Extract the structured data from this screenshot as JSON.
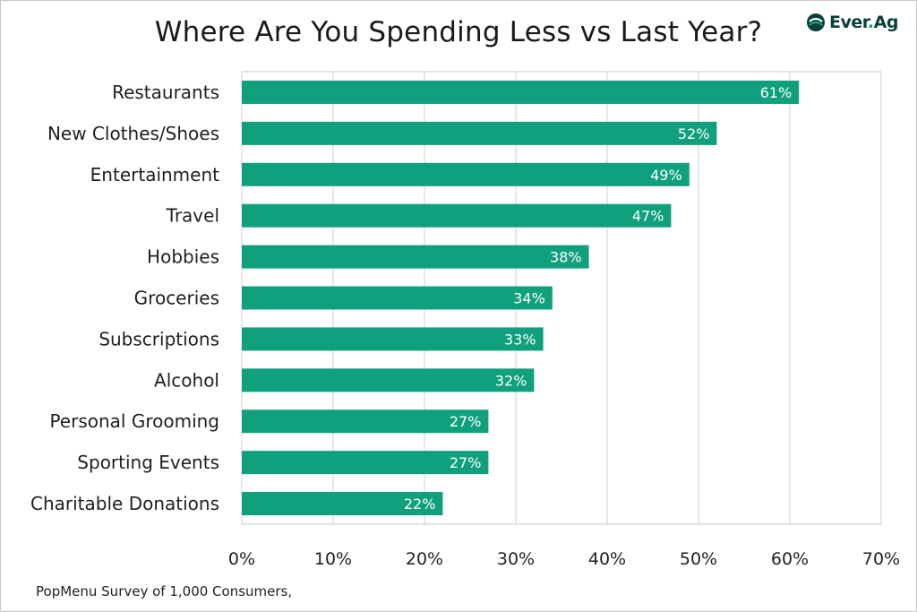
{
  "logo": {
    "brand": "Ever",
    "dot": ".",
    "suffix": "Ag",
    "color": "#15a082"
  },
  "source_note": "PopMenu Survey of 1,000 Consumers,",
  "chart_data": {
    "type": "bar",
    "orientation": "horizontal",
    "title": "Where Are You Spending Less vs Last Year?",
    "categories": [
      "Restaurants",
      "New Clothes/Shoes",
      "Entertainment",
      "Travel",
      "Hobbies",
      "Groceries",
      "Subscriptions",
      "Alcohol",
      "Personal Grooming",
      "Sporting Events",
      "Charitable Donations"
    ],
    "values": [
      61,
      52,
      49,
      47,
      38,
      34,
      33,
      32,
      27,
      27,
      22
    ],
    "data_labels": [
      "61%",
      "52%",
      "49%",
      "47%",
      "38%",
      "34%",
      "33%",
      "32%",
      "27%",
      "27%",
      "22%"
    ],
    "xlim": [
      0,
      70
    ],
    "xticks": [
      0,
      10,
      20,
      30,
      40,
      50,
      60,
      70
    ],
    "xtick_labels": [
      "0%",
      "10%",
      "20%",
      "30%",
      "40%",
      "50%",
      "60%",
      "70%"
    ],
    "xlabel": "",
    "ylabel": "",
    "grid": "vertical",
    "bar_color": "#11a07d",
    "legend": "none"
  }
}
